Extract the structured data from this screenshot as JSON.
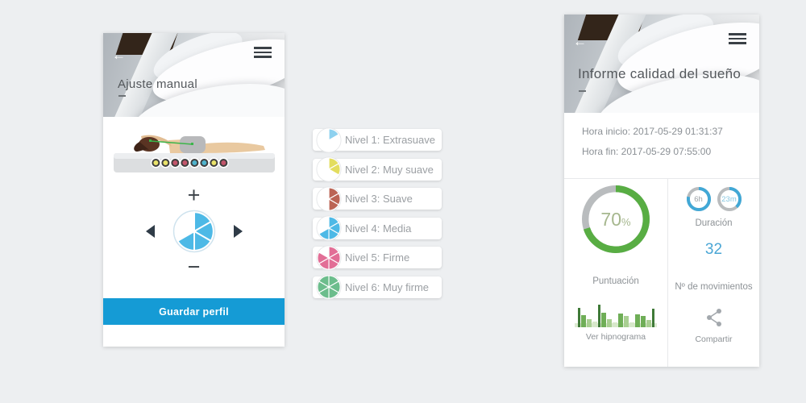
{
  "page": {
    "background_color": "#edeff1"
  },
  "icons": [
    "back-arrow-icon",
    "hamburger-menu-icon",
    "plus-icon",
    "minus-icon",
    "left-arrow-icon",
    "right-arrow-icon",
    "pie-level-icon",
    "share-icon"
  ],
  "left_phone": {
    "title": "Ajuste manual",
    "back_glyph": "←",
    "plus_glyph": "+",
    "minus_glyph": "−",
    "save_button": {
      "label": "Guardar perfil",
      "color": "#159bd5"
    },
    "level_control": {
      "filled": 4,
      "total": 6,
      "color": "#4db9e6",
      "border": "#cfe3ee"
    },
    "sensor_dot_colors": [
      "#e9e26a",
      "#e9e26a",
      "#c2556b",
      "#c2556b",
      "#4fb3cc",
      "#4fb3cc",
      "#e9e26a",
      "#c2556b"
    ]
  },
  "levels_list": {
    "items": [
      {
        "label": "Nivel 1: Extrasuave",
        "icon": {
          "filled": 1,
          "total": 6,
          "color": "#8ed1ef",
          "border": "#e3e5e7"
        }
      },
      {
        "label": "Nivel 2: Muy suave",
        "icon": {
          "filled": 2,
          "total": 6,
          "color": "#e3dd5f",
          "border": "#e3e5e7"
        }
      },
      {
        "label": "Nivel 3: Suave",
        "icon": {
          "filled": 3,
          "total": 6,
          "color": "#bb6454",
          "border": "#e3e5e7"
        }
      },
      {
        "label": "Nivel 4: Media",
        "icon": {
          "filled": 4,
          "total": 6,
          "color": "#4db9e6",
          "border": "#e3e5e7"
        }
      },
      {
        "label": "Nivel 5: Firme",
        "icon": {
          "filled": 5,
          "total": 6,
          "color": "#e26e96",
          "border": "#e3e5e7"
        }
      },
      {
        "label": "Nivel 6: Muy firme",
        "icon": {
          "filled": 6,
          "total": 6,
          "color": "#6cbd8c",
          "border": "#e3e5e7"
        }
      }
    ]
  },
  "right_phone": {
    "title": "Informe calidad del sueño",
    "back_glyph": "←",
    "hora_inicio": "Hora inicio: 2017-05-29 01:31:37",
    "hora_fin": "Hora fin: 2017-05-29 07:55:00",
    "score": {
      "value": "70",
      "percent_sign": "%",
      "caption": "Puntuación",
      "text_color": "#a6b78e",
      "ring": {
        "fraction": 0.7,
        "color": "#58ad43",
        "track": "#b9bcbe",
        "width": 10
      }
    },
    "duration": {
      "caption": "Duración",
      "hours": {
        "label": "6h",
        "ring": {
          "fraction": 0.78,
          "color": "#41a8d6",
          "track": "#b9bcbe",
          "width": 13
        }
      },
      "minutes": {
        "label": "23m",
        "ring": {
          "fraction": 0.38,
          "color": "#41a8d6",
          "track": "#b9bcbe",
          "width": 13
        }
      }
    },
    "movements": {
      "value": "32",
      "caption": "Nº de movimientos",
      "color": "#4aa6d5"
    },
    "hypnogram": {
      "caption": "Ver hipnograma",
      "colors": {
        "dark": "#3f7a38",
        "medium": "#6fae57",
        "light": "#a9cf92",
        "pale": "#d7e8ca"
      },
      "bars": [
        {
          "w": 3,
          "h": 0.8,
          "c": "dark"
        },
        {
          "w": 6,
          "h": 0.5,
          "c": "medium"
        },
        {
          "w": 6,
          "h": 0.32,
          "c": "light"
        },
        {
          "w": 6,
          "h": 0.22,
          "c": "pale"
        },
        {
          "w": 3,
          "h": 0.92,
          "c": "dark"
        },
        {
          "w": 6,
          "h": 0.6,
          "c": "medium"
        },
        {
          "w": 6,
          "h": 0.34,
          "c": "light"
        },
        {
          "w": 6,
          "h": 0.2,
          "c": "pale"
        },
        {
          "w": 6,
          "h": 0.58,
          "c": "medium"
        },
        {
          "w": 6,
          "h": 0.48,
          "c": "light"
        },
        {
          "w": 6,
          "h": 0.2,
          "c": "pale"
        },
        {
          "w": 6,
          "h": 0.55,
          "c": "medium"
        },
        {
          "w": 6,
          "h": 0.48,
          "c": "medium"
        },
        {
          "w": 6,
          "h": 0.3,
          "c": "light"
        },
        {
          "w": 3,
          "h": 0.78,
          "c": "dark"
        }
      ]
    },
    "share": {
      "caption": "Compartir"
    }
  },
  "chart_data": [
    {
      "type": "pie",
      "title": "Puntuación",
      "labels": [
        "score",
        "rest"
      ],
      "values": [
        70,
        30
      ],
      "unit": "%"
    },
    {
      "type": "pie",
      "title": "Duración",
      "labels": [
        "6h",
        "23m"
      ]
    },
    {
      "type": "bar",
      "title": "Ver hipnograma",
      "values": [
        0.8,
        0.5,
        0.32,
        0.22,
        0.92,
        0.6,
        0.34,
        0.2,
        0.58,
        0.48,
        0.2,
        0.55,
        0.48,
        0.3,
        0.78
      ]
    }
  ]
}
